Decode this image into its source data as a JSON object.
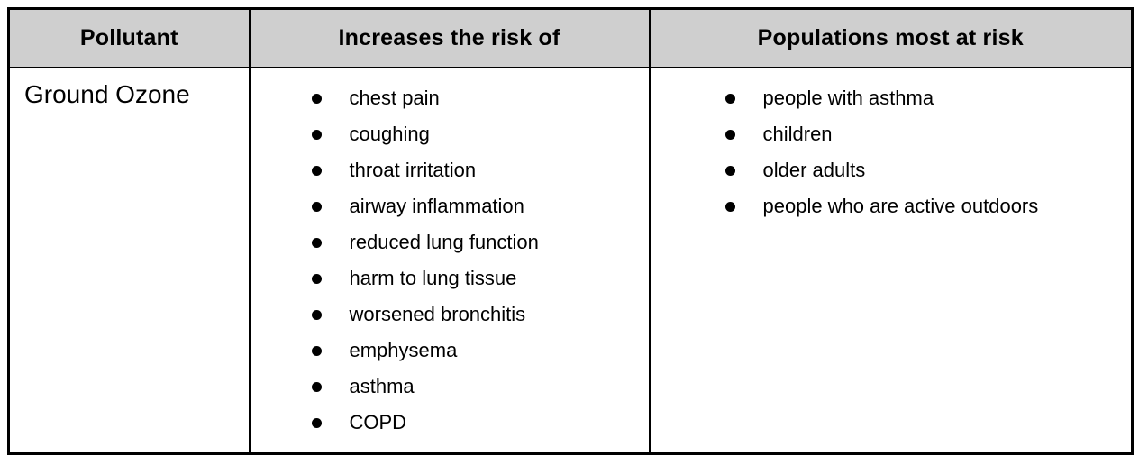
{
  "page": {
    "background": "#ffffff"
  },
  "table": {
    "colors": {
      "border": "#000000",
      "header_background": "#cfcfcf",
      "text": "#000000",
      "body_background": "#ffffff"
    },
    "header": {
      "columns": [
        "Pollutant",
        "Increases the risk of",
        "Populations most at risk"
      ]
    },
    "row": {
      "pollutant": "Ground Ozone",
      "risks": [
        "chest pain",
        "coughing",
        "throat irritation",
        "airway inflammation",
        "reduced lung function",
        "harm to lung tissue",
        "worsened bronchitis",
        "emphysema",
        "asthma",
        "COPD"
      ],
      "populations": [
        "people with asthma",
        "children",
        "older adults",
        "people who are active outdoors"
      ]
    }
  }
}
